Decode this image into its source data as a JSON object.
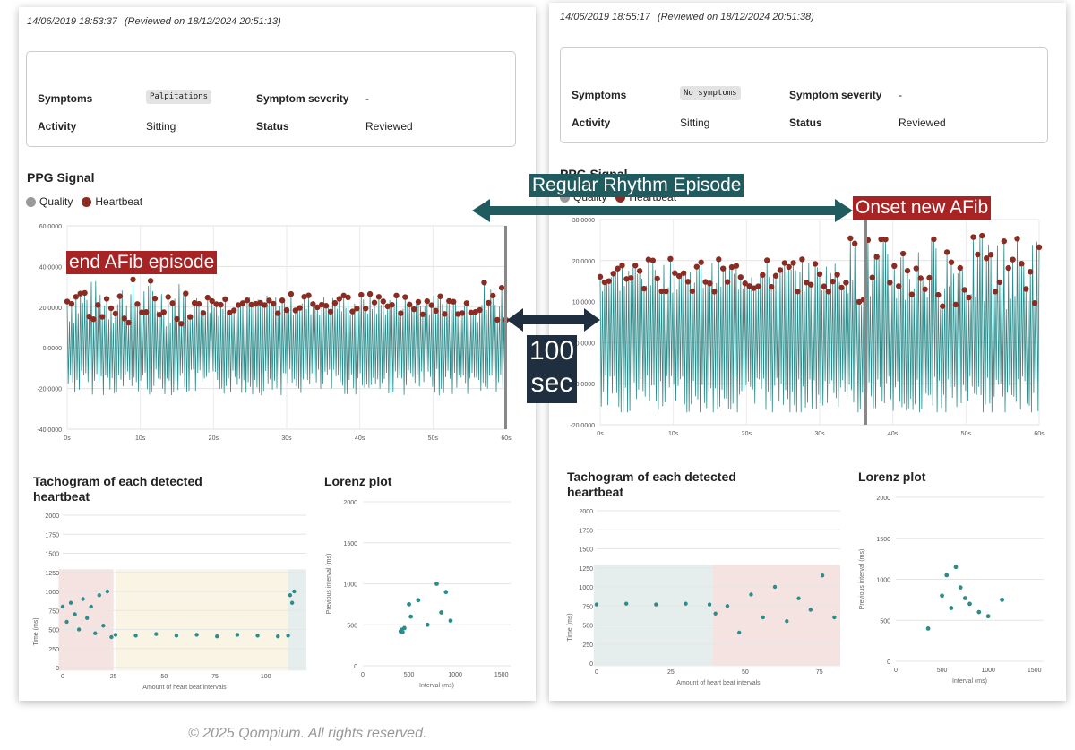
{
  "colors": {
    "accent": "#2e8b8b",
    "heartbeat": "#8b2c22",
    "quality": "#9a9a9a",
    "annotation_dark": "#1f5b5f",
    "annotation_red": "#a82424",
    "annotation_navy": "#1f2f3f"
  },
  "left": {
    "timestamp": "14/06/2019 18:53:37",
    "reviewed": "(Reviewed on 18/12/2024 20:51:13)",
    "info": {
      "symptoms_label": "Symptoms",
      "symptoms_value": "Palpitations",
      "severity_label": "Symptom severity",
      "severity_value": "-",
      "activity_label": "Activity",
      "activity_value": "Sitting",
      "status_label": "Status",
      "status_value": "Reviewed"
    },
    "ppg": {
      "title": "PPG Signal",
      "legend_quality": "Quality",
      "legend_heartbeat": "Heartbeat",
      "y_ticks": [
        "60.0000",
        "40.0000",
        "20.0000",
        "0.0000",
        "-20.0000",
        "-40.0000"
      ],
      "x_ticks": [
        "0s",
        "10s",
        "20s",
        "30s",
        "40s",
        "50s",
        "60s"
      ]
    },
    "tachogram": {
      "title": "Tachogram of each detected heartbeat",
      "ylabel": "Time (ms)",
      "xlabel": "Amount of heart beat intervals",
      "y_ticks": [
        "2000",
        "1750",
        "1500",
        "1250",
        "1000",
        "750",
        "500",
        "250",
        "0"
      ],
      "x_ticks": [
        "0",
        "25",
        "50",
        "75",
        "100"
      ]
    },
    "lorenz": {
      "title": "Lorenz plot",
      "ylabel": "Previous interval (ms)",
      "xlabel": "Interval (ms)",
      "y_ticks": [
        "2000",
        "1500",
        "1000",
        "500",
        "0"
      ],
      "x_ticks": [
        "0",
        "500",
        "1000",
        "1500"
      ]
    }
  },
  "right": {
    "timestamp": "14/06/2019 18:55:17",
    "reviewed": "(Reviewed on 18/12/2024 20:51:38)",
    "info": {
      "symptoms_label": "Symptoms",
      "symptoms_value": "No symptoms",
      "severity_label": "Symptom severity",
      "severity_value": "-",
      "activity_label": "Activity",
      "activity_value": "Sitting",
      "status_label": "Status",
      "status_value": "Reviewed"
    },
    "ppg": {
      "title": "PPG Signal",
      "legend_quality": "Quality",
      "legend_heartbeat": "Heartbeat",
      "y_ticks": [
        "30.0000",
        "20.0000",
        "10.0000",
        "0.0000",
        "-10.0000",
        "-20.0000"
      ],
      "x_ticks": [
        "0s",
        "10s",
        "20s",
        "30s",
        "40s",
        "50s",
        "60s"
      ]
    },
    "tachogram": {
      "title": "Tachogram of each detected heartbeat",
      "ylabel": "Time (ms)",
      "xlabel": "Amount of heart beat intervals",
      "y_ticks": [
        "2000",
        "1750",
        "1500",
        "1250",
        "1000",
        "750",
        "500",
        "250",
        "0"
      ],
      "x_ticks": [
        "0",
        "25",
        "50",
        "75"
      ]
    },
    "lorenz": {
      "title": "Lorenz plot",
      "ylabel": "Previous interval (ms)",
      "xlabel": "Interval (ms)",
      "y_ticks": [
        "2000",
        "1500",
        "1000",
        "500",
        "0"
      ],
      "x_ticks": [
        "0",
        "500",
        "1000",
        "1500"
      ]
    }
  },
  "annotations": {
    "end_afib": "end AFib episode",
    "regular_rhythm": "Regular Rhythm Episode",
    "onset_afib": "Onset new AFib",
    "gap_value": "100",
    "gap_unit": "sec"
  },
  "footer": "© 2025 Qompium. All rights reserved.",
  "chart_data": [
    {
      "type": "line",
      "title": "PPG Signal (left)",
      "xlabel": "",
      "ylabel": "",
      "xlim": [
        0,
        60
      ],
      "ylim": [
        -40,
        60
      ],
      "episodes": [
        {
          "label": "AFib",
          "start_s": 0,
          "end_s": 17
        },
        {
          "label": "regular",
          "start_s": 17,
          "end_s": 56
        },
        {
          "label": "AFib",
          "start_s": 56,
          "end_s": 60
        }
      ]
    },
    {
      "type": "line",
      "title": "PPG Signal (right)",
      "xlim": [
        0,
        60
      ],
      "ylim": [
        -20,
        30
      ],
      "episodes": [
        {
          "label": "regular",
          "start_s": 0,
          "end_s": 33
        },
        {
          "label": "AFib",
          "start_s": 34,
          "end_s": 60
        }
      ]
    },
    {
      "type": "scatter",
      "title": "Tachogram (left)",
      "xlim": [
        0,
        120
      ],
      "ylim": [
        0,
        2000
      ],
      "series": [
        {
          "name": "AFib",
          "x": [
            0,
            2,
            4,
            6,
            8,
            10,
            12,
            14,
            16,
            18,
            20,
            22,
            24
          ],
          "y": [
            800,
            600,
            850,
            700,
            500,
            900,
            650,
            800,
            450,
            950,
            550,
            1000,
            400
          ]
        },
        {
          "name": "regular",
          "x": [
            26,
            36,
            46,
            56,
            66,
            76,
            86,
            96,
            106,
            111
          ],
          "y": [
            430,
            420,
            440,
            420,
            430,
            410,
            430,
            420,
            410,
            420
          ]
        },
        {
          "name": "AFib end",
          "x": [
            112,
            113,
            114
          ],
          "y": [
            950,
            850,
            1000
          ]
        }
      ]
    },
    {
      "type": "scatter",
      "title": "Tachogram (right)",
      "xlim": [
        0,
        82
      ],
      "ylim": [
        0,
        2000
      ],
      "series": [
        {
          "name": "regular",
          "x": [
            0,
            10,
            20,
            30,
            38
          ],
          "y": [
            770,
            780,
            770,
            780,
            770
          ]
        },
        {
          "name": "AFib",
          "x": [
            40,
            44,
            48,
            52,
            56,
            60,
            64,
            68,
            72,
            76,
            80
          ],
          "y": [
            650,
            750,
            400,
            900,
            600,
            1000,
            550,
            850,
            700,
            1150,
            600
          ]
        }
      ]
    },
    {
      "type": "scatter",
      "title": "Lorenz plot (left)",
      "xlim": [
        0,
        1600
      ],
      "ylim": [
        0,
        2000
      ],
      "x": [
        410,
        420,
        430,
        450,
        500,
        520,
        600,
        700,
        800,
        850,
        900,
        950
      ],
      "y": [
        420,
        440,
        410,
        460,
        750,
        600,
        800,
        500,
        1000,
        650,
        900,
        550
      ]
    },
    {
      "type": "scatter",
      "title": "Lorenz plot (right)",
      "xlim": [
        0,
        1600
      ],
      "ylim": [
        0,
        2000
      ],
      "x": [
        350,
        500,
        550,
        600,
        650,
        700,
        750,
        800,
        900,
        1000,
        1150
      ],
      "y": [
        400,
        800,
        1050,
        650,
        1150,
        900,
        770,
        700,
        600,
        550,
        750
      ]
    }
  ]
}
